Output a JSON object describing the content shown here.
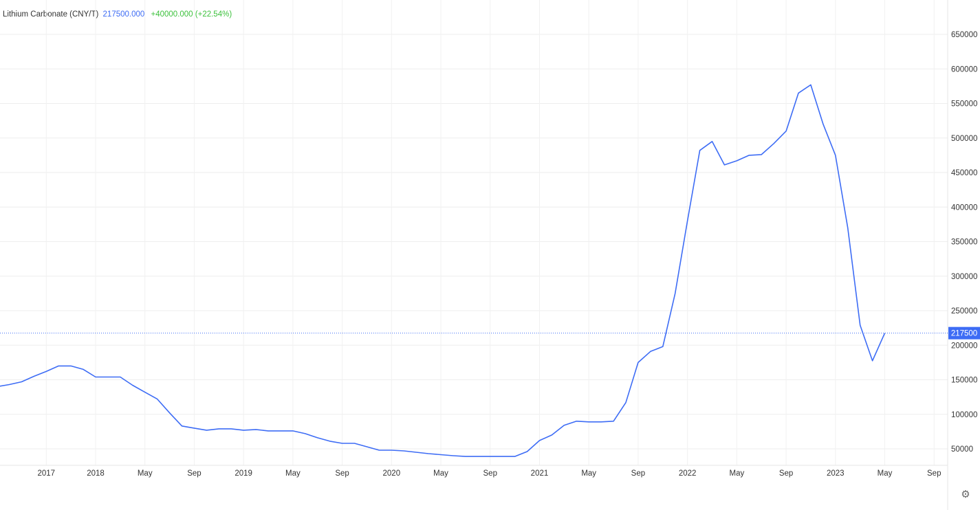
{
  "legend": {
    "name": "Lithium Carbonate (CNY/T)",
    "price": "217500.000",
    "change": "+40000.000 (+22.54%)"
  },
  "colors": {
    "line": "#3d6cf5",
    "change": "#3cc13c",
    "grid": "#eeeeee"
  },
  "settings_icon": "gear-icon",
  "chart_data": {
    "type": "line",
    "title": "Lithium Carbonate (CNY/T)",
    "y_axis_position": "right",
    "ylim": [
      0,
      690000
    ],
    "y_ticks": [
      50000,
      100000,
      150000,
      200000,
      250000,
      300000,
      350000,
      400000,
      450000,
      500000,
      550000,
      600000,
      650000
    ],
    "x_ticks": [
      {
        "month": "2017-09",
        "label": "2017"
      },
      {
        "month": "2018-01",
        "label": "2018"
      },
      {
        "month": "2018-05",
        "label": "May"
      },
      {
        "month": "2018-09",
        "label": "Sep"
      },
      {
        "month": "2019-01",
        "label": "2019"
      },
      {
        "month": "2019-05",
        "label": "May"
      },
      {
        "month": "2019-09",
        "label": "Sep"
      },
      {
        "month": "2020-01",
        "label": "2020"
      },
      {
        "month": "2020-05",
        "label": "May"
      },
      {
        "month": "2020-09",
        "label": "Sep"
      },
      {
        "month": "2021-01",
        "label": "2021"
      },
      {
        "month": "2021-05",
        "label": "May"
      },
      {
        "month": "2021-09",
        "label": "Sep"
      },
      {
        "month": "2022-01",
        "label": "2022"
      },
      {
        "month": "2022-05",
        "label": "May"
      },
      {
        "month": "2022-09",
        "label": "Sep"
      },
      {
        "month": "2023-01",
        "label": "2023"
      },
      {
        "month": "2023-05",
        "label": "May"
      },
      {
        "month": "2023-09",
        "label": "Sep"
      }
    ],
    "grid": true,
    "current_value": 217500,
    "current_label": "217500",
    "series": [
      {
        "x": [
          "2017-05",
          "2017-06",
          "2017-07",
          "2017-08",
          "2017-09",
          "2017-10",
          "2017-11",
          "2017-12",
          "2018-01",
          "2018-02",
          "2018-03",
          "2018-04",
          "2018-05",
          "2018-06",
          "2018-07",
          "2018-08",
          "2018-09",
          "2018-10",
          "2018-11",
          "2018-12",
          "2019-01",
          "2019-02",
          "2019-03",
          "2019-04",
          "2019-05",
          "2019-06",
          "2019-07",
          "2019-08",
          "2019-09",
          "2019-10",
          "2019-11",
          "2019-12",
          "2020-01",
          "2020-02",
          "2020-03",
          "2020-04",
          "2020-05",
          "2020-06",
          "2020-07",
          "2020-08",
          "2020-09",
          "2020-10",
          "2020-11",
          "2020-12",
          "2021-01",
          "2021-02",
          "2021-03",
          "2021-04",
          "2021-05",
          "2021-06",
          "2021-07",
          "2021-08",
          "2021-09",
          "2021-10",
          "2021-11",
          "2021-12",
          "2022-01",
          "2022-02",
          "2022-03",
          "2022-04",
          "2022-05",
          "2022-06",
          "2022-07",
          "2022-08",
          "2022-09",
          "2022-10",
          "2022-11",
          "2022-12",
          "2023-01",
          "2023-02",
          "2023-03",
          "2023-04",
          "2023-05"
        ],
        "values": [
          140000,
          143000,
          147000,
          155000,
          162000,
          170000,
          170000,
          165000,
          154000,
          154000,
          154000,
          142000,
          132000,
          122000,
          102000,
          83000,
          80000,
          77000,
          79000,
          79000,
          77000,
          78000,
          76000,
          76000,
          76000,
          72000,
          66000,
          61000,
          58000,
          58000,
          53000,
          48000,
          48000,
          47000,
          45000,
          43000,
          41500,
          40000,
          39000,
          39000,
          39000,
          39000,
          39000,
          46000,
          62000,
          70000,
          84000,
          90000,
          89000,
          89000,
          90000,
          117000,
          175000,
          191000,
          198000,
          275000,
          380000,
          482000,
          495000,
          461000,
          467000,
          475000,
          476000,
          492000,
          510000,
          565000,
          577000,
          520000,
          475000,
          370000,
          229000,
          177500,
          217500
        ]
      }
    ]
  }
}
